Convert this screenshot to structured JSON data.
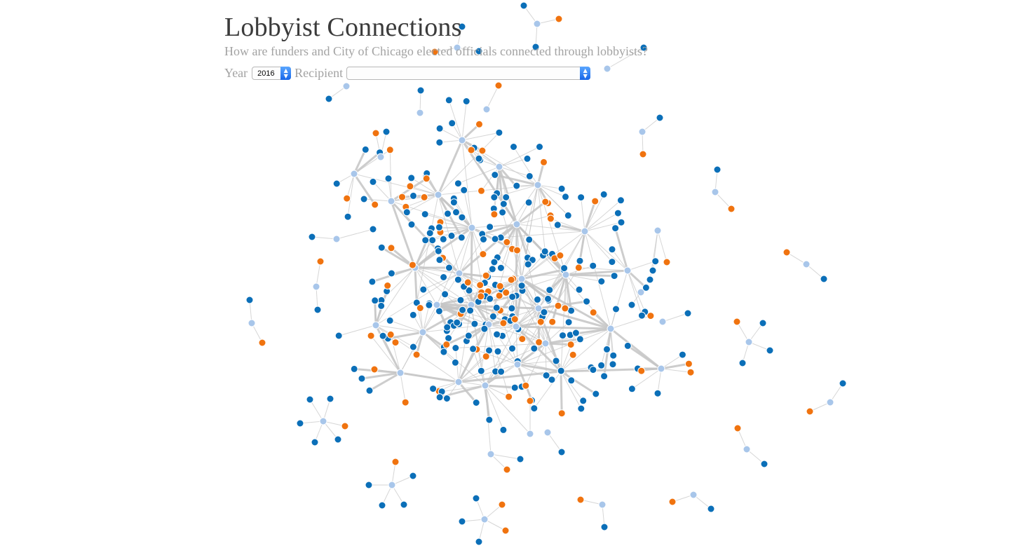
{
  "header": {
    "title": "Lobbyist Connections",
    "subtitle": "How are funders and City of Chicago elected officials connected through lobbyists?"
  },
  "controls": {
    "year_label": "Year",
    "year_value": "2016",
    "recipient_label": "Recipient",
    "recipient_value": ""
  },
  "icons": {
    "select_stepper": "up-down-chevron-icon"
  },
  "colors": {
    "funder": "#0b6fb8",
    "official": "#f0730f",
    "lobbyist": "#a8c6ea",
    "link": "#c4c4c4"
  },
  "legend_types": [
    "funder",
    "official",
    "lobbyist"
  ]
}
